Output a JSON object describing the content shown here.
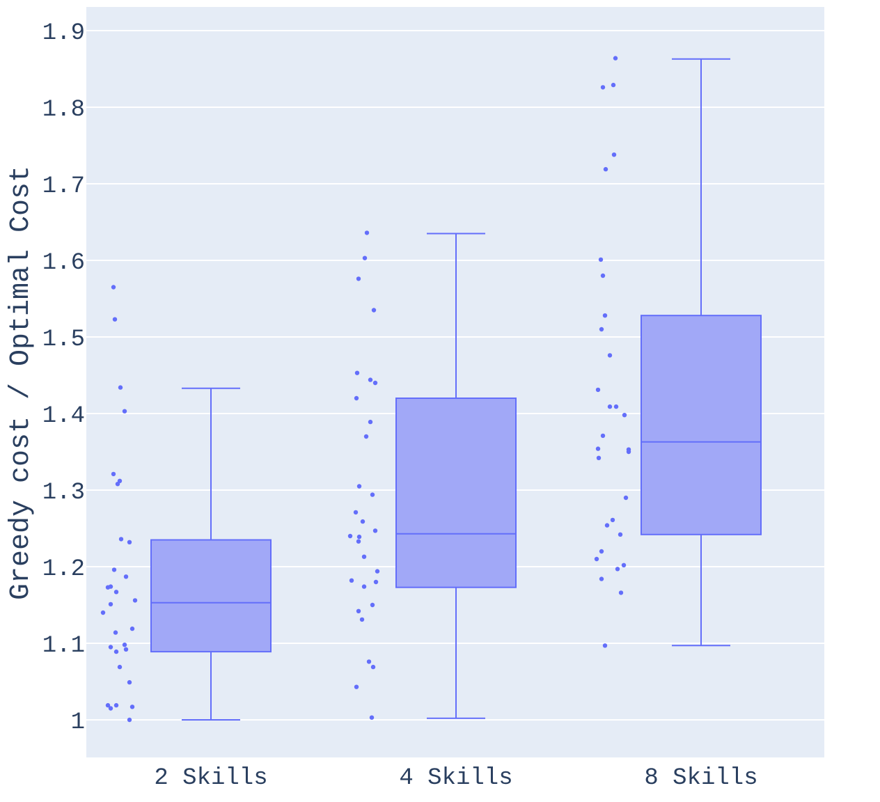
{
  "chart_data": {
    "type": "box",
    "ylabel": "Greedy cost / Optimal Cost",
    "xlabel": "",
    "title": "",
    "ylim": [
      0.95,
      1.93
    ],
    "yticks": [
      "1",
      "1.1",
      "1.2",
      "1.3",
      "1.4",
      "1.5",
      "1.6",
      "1.7",
      "1.8",
      "1.9"
    ],
    "ytick_values": [
      1.0,
      1.1,
      1.2,
      1.3,
      1.4,
      1.5,
      1.6,
      1.7,
      1.8,
      1.9
    ],
    "grid": true,
    "colors": {
      "box_line": "#636efa",
      "box_fill": "#a1a8f7",
      "plot_bg": "#e5ecf6",
      "grid": "#ffffff",
      "text": "#2a3f5f"
    },
    "categories": [
      "2 Skills",
      "4 Skills",
      "8 Skills"
    ],
    "boxes": [
      {
        "name": "2 Skills",
        "min": 1.0,
        "q1": 1.089,
        "median": 1.153,
        "q3": 1.235,
        "max": 1.433,
        "points": [
          1.565,
          1.523,
          1.434,
          1.403,
          1.321,
          1.312,
          1.308,
          1.236,
          1.232,
          1.196,
          1.187,
          1.174,
          1.173,
          1.167,
          1.156,
          1.151,
          1.14,
          1.119,
          1.114,
          1.098,
          1.095,
          1.092,
          1.089,
          1.069,
          1.049,
          1.019,
          1.019,
          1.017,
          1.015,
          1.0
        ]
      },
      {
        "name": "4 Skills",
        "min": 1.002,
        "q1": 1.173,
        "median": 1.243,
        "q3": 1.42,
        "max": 1.635,
        "points": [
          1.636,
          1.603,
          1.576,
          1.535,
          1.453,
          1.444,
          1.44,
          1.42,
          1.389,
          1.37,
          1.305,
          1.294,
          1.271,
          1.259,
          1.247,
          1.24,
          1.239,
          1.233,
          1.213,
          1.194,
          1.182,
          1.18,
          1.174,
          1.15,
          1.142,
          1.131,
          1.076,
          1.069,
          1.043,
          1.003
        ]
      },
      {
        "name": "8 Skills",
        "min": 1.097,
        "q1": 1.242,
        "median": 1.363,
        "q3": 1.528,
        "max": 1.863,
        "points": [
          1.864,
          1.829,
          1.826,
          1.738,
          1.719,
          1.601,
          1.58,
          1.528,
          1.51,
          1.476,
          1.431,
          1.409,
          1.409,
          1.398,
          1.371,
          1.354,
          1.353,
          1.35,
          1.342,
          1.29,
          1.261,
          1.254,
          1.242,
          1.22,
          1.21,
          1.202,
          1.197,
          1.184,
          1.166,
          1.097
        ]
      }
    ]
  }
}
